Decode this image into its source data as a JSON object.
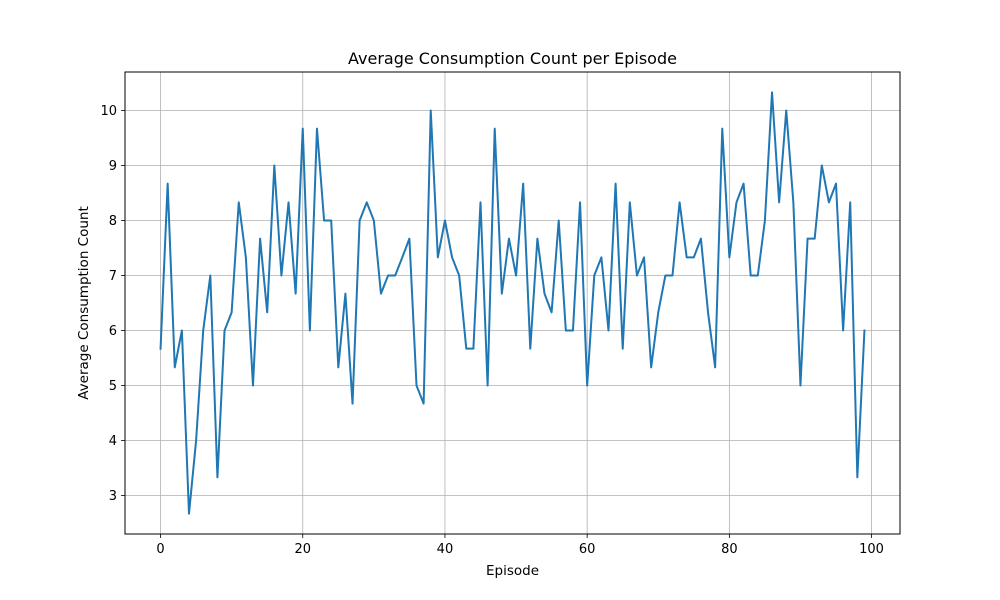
{
  "chart_data": {
    "type": "line",
    "title": "Average Consumption Count per Episode",
    "xlabel": "Episode",
    "ylabel": "Average Consumption Count",
    "xlim": [
      -5,
      104
    ],
    "ylim": [
      2.3,
      10.7
    ],
    "xticks": [
      0,
      20,
      40,
      60,
      80,
      100
    ],
    "yticks": [
      3,
      4,
      5,
      6,
      7,
      8,
      9,
      10
    ],
    "grid": true,
    "line_color": "#1f77b4",
    "series": [
      {
        "x": [
          0,
          1,
          2,
          3,
          4,
          5,
          6,
          7,
          8,
          9,
          10,
          11,
          12,
          13,
          14,
          15,
          16,
          17,
          18,
          19,
          20,
          21,
          22,
          23,
          24,
          25,
          26,
          27,
          28,
          29,
          30,
          31,
          32,
          33,
          34,
          35,
          36,
          37,
          38,
          39,
          40,
          41,
          42,
          43,
          44,
          45,
          46,
          47,
          48,
          49,
          50,
          51,
          52,
          53,
          54,
          55,
          56,
          57,
          58,
          59,
          60,
          61,
          62,
          63,
          64,
          65,
          66,
          67,
          68,
          69,
          70,
          71,
          72,
          73,
          74,
          75,
          76,
          77,
          78,
          79,
          80,
          81,
          82,
          83,
          84,
          85,
          86,
          87,
          88,
          89,
          90,
          91,
          92,
          93,
          94,
          95,
          96,
          97,
          98,
          99
        ],
        "values": [
          5.67,
          8.67,
          5.33,
          6.0,
          2.67,
          4.0,
          6.0,
          7.0,
          3.33,
          6.0,
          6.33,
          8.33,
          7.33,
          5.0,
          7.67,
          6.33,
          9.0,
          7.0,
          8.33,
          6.67,
          9.67,
          6.0,
          9.67,
          8.0,
          8.0,
          5.33,
          6.67,
          4.67,
          8.0,
          8.33,
          8.0,
          6.67,
          7.0,
          7.0,
          7.33,
          7.67,
          5.0,
          4.67,
          10.0,
          7.33,
          8.0,
          7.33,
          7.0,
          5.67,
          5.67,
          8.33,
          5.0,
          9.67,
          6.67,
          7.67,
          7.0,
          8.67,
          5.67,
          7.67,
          6.67,
          6.33,
          8.0,
          6.0,
          6.0,
          8.33,
          5.0,
          7.0,
          7.33,
          6.0,
          8.67,
          5.67,
          8.33,
          7.0,
          7.33,
          5.33,
          6.33,
          7.0,
          7.0,
          8.33,
          7.33,
          7.33,
          7.67,
          6.33,
          5.33,
          9.67,
          7.33,
          8.33,
          8.67,
          7.0,
          7.0,
          8.0,
          10.33,
          8.33,
          10.0,
          8.33,
          5.0,
          7.67,
          7.67,
          9.0,
          8.33,
          8.67,
          6.0,
          8.33,
          3.33,
          6.0
        ]
      }
    ]
  }
}
